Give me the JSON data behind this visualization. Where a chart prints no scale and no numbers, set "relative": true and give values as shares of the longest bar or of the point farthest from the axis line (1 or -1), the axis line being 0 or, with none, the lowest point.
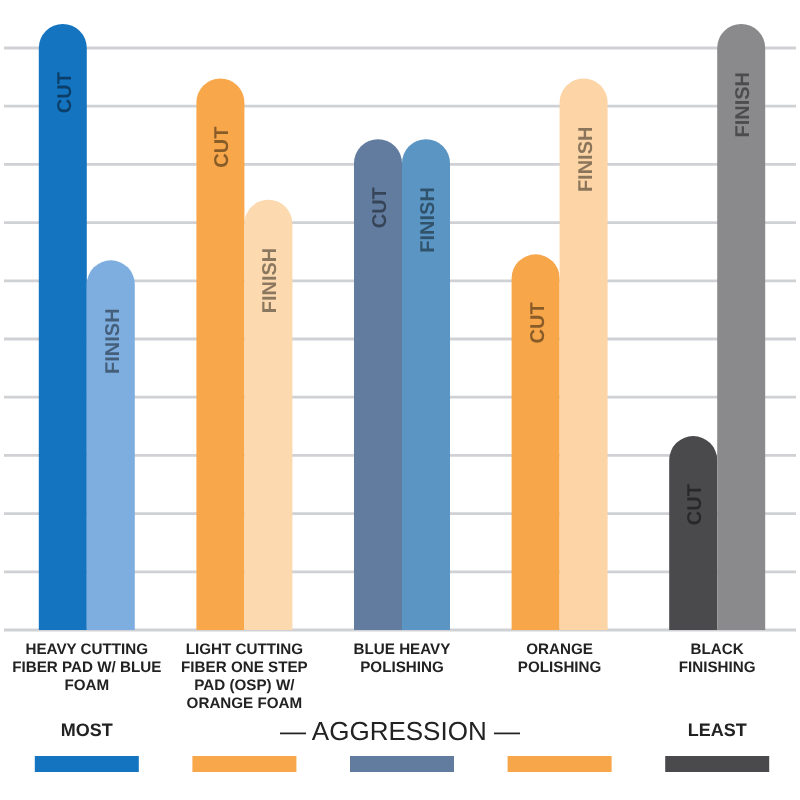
{
  "chart_data": {
    "type": "bar",
    "relative": true,
    "grid": true,
    "categories": [
      "HEAVY CUTTING FIBER PAD W/ BLUE FOAM",
      "LIGHT CUTTING FIBER ONE STEP PAD (OSP) W/ ORANGE FOAM",
      "BLUE HEAVY POLISHING",
      "ORANGE POLISHING",
      "BLACK FINISHING"
    ],
    "series": [
      {
        "name": "CUT",
        "colors": [
          "#1474c0",
          "#f8a84a",
          "#627c9f",
          "#f7a64a",
          "#4a4a4c"
        ],
        "values": [
          1,
          0.91,
          0.81,
          0.62,
          0.32
        ]
      },
      {
        "name": "FINISH",
        "colors": [
          "#7eaee0",
          "#fcd9ae",
          "#5a95c3",
          "#fcd4a5",
          "#8a8a8c"
        ],
        "values": [
          0.61,
          0.71,
          0.81,
          0.91,
          1
        ]
      }
    ],
    "annotations": [
      "MOST",
      "— AGGRESSION —",
      "LEAST"
    ]
  }
}
